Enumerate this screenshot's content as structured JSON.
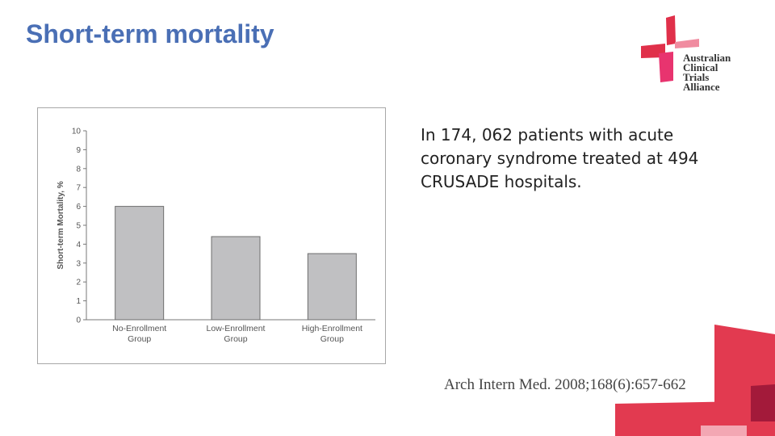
{
  "slide": {
    "title": "Short-term mortality",
    "description": "In 174, 062 patients with acute coronary syndrome treated at 494 CRUSADE hospitals.",
    "citation": "Arch Intern Med. 2008;168(6):657-662"
  },
  "logo": {
    "lines": [
      "Australian",
      "Clinical",
      "Trials",
      "Alliance"
    ],
    "colors": {
      "red": "#e0304a",
      "pink": "#e8346f",
      "light": "#f08ca0"
    }
  },
  "colors": {
    "title": "#4a6fb5",
    "bar": "#c0c0c2",
    "deco_red": "#e23a50",
    "deco_dark": "#a31a3a",
    "deco_pink": "#f3a7b3"
  },
  "chart_data": {
    "type": "bar",
    "ylabel": "Short-term Mortality, %",
    "ylim": [
      0,
      10
    ],
    "yticks": [
      "0",
      "1",
      "2",
      "3",
      "4",
      "5",
      "6",
      "7",
      "8",
      "9",
      "10"
    ],
    "categories": [
      [
        "No-Enrollment",
        "Group"
      ],
      [
        "Low-Enrollment",
        "Group"
      ],
      [
        "High-Enrollment",
        "Group"
      ]
    ],
    "values": [
      6.0,
      4.4,
      3.5
    ],
    "grid": false
  }
}
